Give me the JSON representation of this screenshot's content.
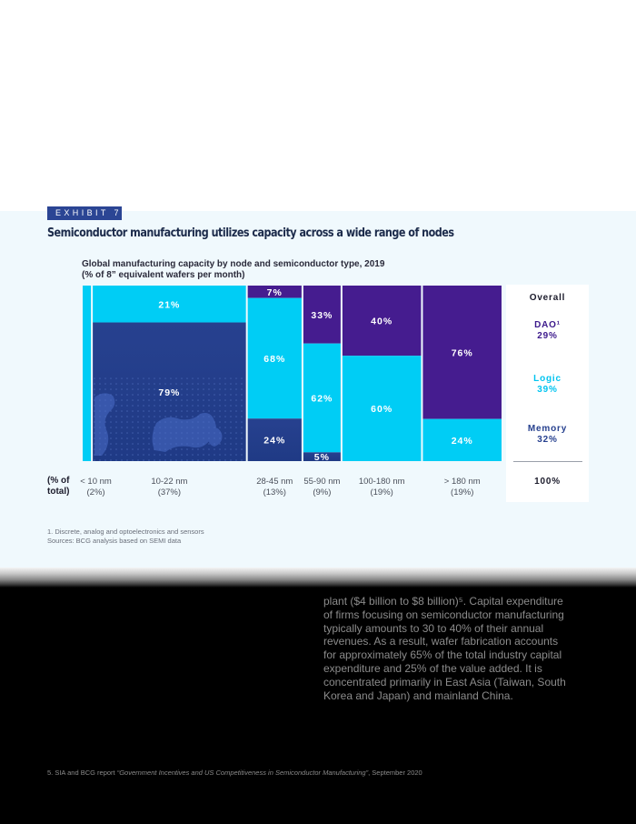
{
  "exhibit": {
    "tag": "EXHIBIT 7",
    "title": "Semiconductor manufacturing utilizes capacity across a wide range of nodes"
  },
  "chart_data": {
    "type": "marimekko",
    "title_line1": "Global manufacturing capacity by node and semiconductor type, 2019",
    "title_line2": "(% of 8” equivalent wafers per month)",
    "x_axis_label": "(% of total)",
    "columns": [
      {
        "label": "< 10 nm",
        "share": "(2%)",
        "width_pct": 2,
        "segments": [
          {
            "type": "Logic",
            "value": 100,
            "label": ""
          }
        ]
      },
      {
        "label": "10-22 nm",
        "share": "(37%)",
        "width_pct": 37,
        "segments": [
          {
            "type": "Logic",
            "value": 21,
            "label": "21%"
          },
          {
            "type": "Memory",
            "value": 79,
            "label": "79%"
          }
        ]
      },
      {
        "label": "28-45 nm",
        "share": "(13%)",
        "width_pct": 13,
        "segments": [
          {
            "type": "DAO",
            "value": 7,
            "label": "7%"
          },
          {
            "type": "Logic",
            "value": 68,
            "label": "68%"
          },
          {
            "type": "Memory",
            "value": 24,
            "label": "24%"
          }
        ]
      },
      {
        "label": "55-90 nm",
        "share": "(9%)",
        "width_pct": 9,
        "segments": [
          {
            "type": "DAO",
            "value": 33,
            "label": "33%"
          },
          {
            "type": "Logic",
            "value": 62,
            "label": "62%"
          },
          {
            "type": "Memory",
            "value": 5,
            "label": "5%"
          }
        ]
      },
      {
        "label": "100-180 nm",
        "share": "(19%)",
        "width_pct": 19,
        "segments": [
          {
            "type": "DAO",
            "value": 40,
            "label": "40%"
          },
          {
            "type": "Logic",
            "value": 60,
            "label": "60%"
          }
        ]
      },
      {
        "label": "> 180 nm",
        "share": "(19%)",
        "width_pct": 19,
        "segments": [
          {
            "type": "DAO",
            "value": 76,
            "label": "76%"
          },
          {
            "type": "Logic",
            "value": 24,
            "label": "24%"
          }
        ]
      }
    ],
    "overall": {
      "heading": "Overall",
      "items": [
        {
          "name": "DAO¹",
          "value": "29%",
          "color": "#3d1a8c"
        },
        {
          "name": "Logic",
          "value": "39%",
          "color": "#00c4f0"
        },
        {
          "name": "Memory",
          "value": "32%",
          "color": "#27418f"
        }
      ],
      "total": "100%"
    },
    "colors": {
      "DAO": "#451c8f",
      "Logic": "#00cdf5",
      "Memory": "#253f8e"
    }
  },
  "footnotes": {
    "line1": "1. Discrete, analog and optoelectronics and sensors",
    "line2": "Sources: BCG analysis based on SEMI data"
  },
  "body_text": [
    "plant ($4 billion to $8 billion)⁵. Capital expenditure",
    "of firms focusing on semiconductor manufacturing",
    "typically amounts to 30 to 40% of their annual",
    "revenues. As a result, wafer fabrication accounts",
    "for approximately 65% of the total industry capital",
    "expenditure and 25% of the value added. It is",
    "concentrated primarily in East Asia (Taiwan, South",
    "Korea and Japan) and mainland China."
  ],
  "page_footnote": {
    "prefix": "5. SIA and BCG report ",
    "title": "“Government Incentives and US Competitiveness in Semiconductor Manufacturing”",
    "suffix": ", September 2020"
  }
}
